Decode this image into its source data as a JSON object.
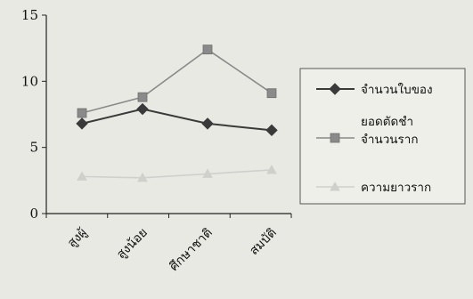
{
  "chart_data": {
    "type": "line",
    "categories": [
      "สูงผู้",
      "สูงน้อย",
      "ศึกษาชาติ",
      "สมบัติ"
    ],
    "ylim": [
      0,
      15
    ],
    "yticks": [
      0,
      5,
      10,
      15
    ],
    "grid": false,
    "legend_position": "right",
    "series": [
      {
        "name": "จำนวนใบของ",
        "values": [
          6.8,
          7.9,
          6.8,
          6.3
        ],
        "color": "#3a3a3a",
        "marker": "diamond"
      },
      {
        "name": "ยอดตัดชำ จำนวนราก",
        "values": [
          7.6,
          8.8,
          12.4,
          9.1
        ],
        "color": "#8a8a8a",
        "marker": "square"
      },
      {
        "name": "ความยาวราก",
        "values": [
          2.8,
          2.7,
          3.0,
          3.3
        ],
        "color": "#cfcfcc",
        "marker": "triangle"
      }
    ]
  },
  "legend": {
    "items": [
      {
        "lines": [
          "จำนวนใบของ"
        ]
      },
      {
        "lines": [
          "ยอดตัดชำ",
          "จำนวนราก"
        ]
      },
      {
        "lines": [
          "ความยาวราก"
        ]
      }
    ]
  }
}
